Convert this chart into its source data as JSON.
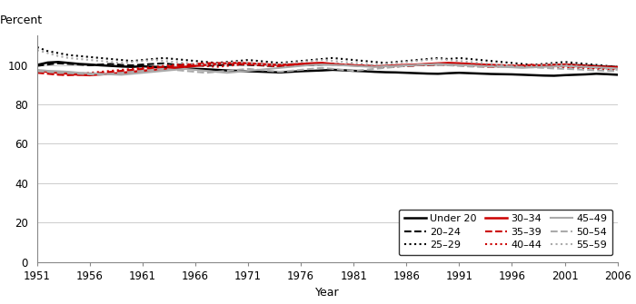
{
  "ylabel": "Percent",
  "xlabel": "Year",
  "xlim": [
    1951,
    2006
  ],
  "ylim": [
    0,
    115
  ],
  "yticks": [
    0,
    20,
    40,
    60,
    80,
    100
  ],
  "xticks": [
    1951,
    1956,
    1961,
    1966,
    1971,
    1976,
    1981,
    1986,
    1991,
    1996,
    2001,
    2006
  ],
  "background_color": "#ffffff",
  "plot_bg_color": "#ffffff",
  "series": {
    "under20": {
      "label": "Under 20",
      "color": "#000000",
      "linestyle": "solid",
      "linewidth": 1.8,
      "data": [
        100.0,
        101.2,
        101.5,
        101.0,
        100.5,
        100.2,
        99.8,
        99.5,
        99.2,
        99.0,
        99.3,
        99.0,
        98.8,
        98.5,
        98.2,
        98.0,
        97.8,
        97.5,
        97.2,
        97.0,
        96.8,
        96.6,
        96.4,
        96.2,
        96.5,
        96.8,
        97.0,
        97.2,
        97.5,
        97.3,
        97.0,
        96.8,
        96.5,
        96.3,
        96.2,
        96.0,
        95.8,
        95.6,
        95.5,
        95.8,
        96.0,
        95.8,
        95.6,
        95.4,
        95.3,
        95.2,
        95.0,
        94.8,
        94.6,
        94.5,
        94.8,
        95.0,
        95.2,
        95.5,
        95.3,
        95.0
      ]
    },
    "20_24": {
      "label": "20–24",
      "color": "#000000",
      "linestyle": "dashed",
      "linewidth": 1.5,
      "data": [
        99.5,
        100.2,
        100.8,
        100.5,
        100.2,
        99.8,
        100.2,
        100.5,
        100.0,
        99.8,
        100.2,
        100.5,
        100.8,
        100.2,
        100.0,
        99.8,
        99.5,
        99.8,
        100.0,
        100.2,
        100.0,
        99.8,
        99.5,
        99.3,
        99.5,
        99.8,
        100.0,
        100.2,
        100.5,
        100.2,
        99.8,
        99.5,
        99.3,
        99.0,
        99.2,
        99.5,
        99.8,
        100.0,
        100.2,
        100.5,
        100.2,
        100.0,
        99.8,
        99.5,
        99.3,
        99.0,
        99.2,
        99.5,
        99.8,
        100.0,
        100.2,
        100.0,
        99.8,
        99.5,
        99.3,
        99.0
      ]
    },
    "25_29": {
      "label": "25–29",
      "color": "#000000",
      "linestyle": "dotted",
      "linewidth": 1.5,
      "data": [
        109.0,
        107.0,
        106.0,
        105.0,
        104.5,
        104.0,
        103.5,
        103.0,
        102.5,
        102.0,
        102.5,
        103.0,
        103.5,
        103.0,
        102.5,
        102.0,
        101.5,
        101.0,
        101.5,
        102.0,
        102.5,
        102.0,
        101.5,
        101.0,
        101.5,
        102.0,
        102.5,
        103.0,
        103.5,
        103.0,
        102.5,
        102.0,
        101.5,
        101.0,
        101.5,
        102.0,
        102.5,
        103.0,
        103.5,
        103.0,
        103.5,
        103.0,
        102.5,
        102.0,
        101.5,
        101.0,
        100.5,
        100.0,
        100.5,
        101.0,
        101.5,
        101.0,
        100.5,
        100.0,
        99.5,
        99.0
      ]
    },
    "30_34": {
      "label": "30–34",
      "color": "#cc0000",
      "linestyle": "solid",
      "linewidth": 1.8,
      "data": [
        97.0,
        96.5,
        96.0,
        95.5,
        95.0,
        94.8,
        95.2,
        95.5,
        96.0,
        96.5,
        97.0,
        97.5,
        98.0,
        98.5,
        99.0,
        99.5,
        100.0,
        100.5,
        100.8,
        101.0,
        100.8,
        100.5,
        100.2,
        100.0,
        100.2,
        100.5,
        100.8,
        101.0,
        100.5,
        100.0,
        99.8,
        99.5,
        99.3,
        99.5,
        99.8,
        100.0,
        100.2,
        100.5,
        100.8,
        101.0,
        100.8,
        100.5,
        100.2,
        100.0,
        99.8,
        99.5,
        99.3,
        99.5,
        99.8,
        100.0,
        100.2,
        99.8,
        99.5,
        99.2,
        99.0,
        98.8
      ]
    },
    "35_39": {
      "label": "35–39",
      "color": "#cc0000",
      "linestyle": "dashed",
      "linewidth": 1.5,
      "data": [
        96.0,
        95.5,
        95.0,
        94.8,
        95.0,
        95.5,
        96.0,
        96.5,
        97.0,
        97.5,
        98.0,
        98.5,
        99.0,
        99.5,
        100.0,
        100.5,
        100.8,
        101.0,
        100.8,
        100.5,
        100.3,
        100.0,
        99.8,
        99.5,
        99.8,
        100.0,
        100.2,
        100.5,
        100.2,
        100.0,
        99.8,
        99.5,
        99.3,
        99.0,
        99.3,
        99.5,
        99.8,
        100.0,
        100.2,
        100.0,
        99.8,
        99.5,
        99.3,
        99.0,
        99.3,
        99.5,
        99.8,
        100.0,
        99.8,
        99.5,
        99.2,
        99.0,
        98.8,
        98.5,
        98.3,
        98.0
      ]
    },
    "40_44": {
      "label": "40–44",
      "color": "#cc0000",
      "linestyle": "dotted",
      "linewidth": 1.5,
      "data": [
        96.5,
        95.8,
        95.2,
        95.0,
        95.5,
        96.0,
        96.5,
        97.0,
        97.5,
        98.0,
        98.5,
        99.0,
        99.5,
        100.0,
        100.5,
        100.0,
        99.5,
        99.0,
        99.5,
        100.0,
        100.5,
        100.0,
        99.5,
        99.0,
        99.5,
        100.0,
        100.5,
        100.8,
        100.5,
        100.2,
        99.8,
        99.5,
        99.3,
        99.0,
        99.2,
        99.5,
        99.8,
        100.0,
        100.2,
        100.0,
        99.8,
        99.5,
        99.3,
        99.0,
        99.3,
        99.5,
        99.8,
        99.5,
        99.2,
        99.0,
        98.8,
        98.5,
        98.3,
        98.0,
        97.8,
        97.5
      ]
    },
    "45_49": {
      "label": "45–49",
      "color": "#aaaaaa",
      "linestyle": "solid",
      "linewidth": 1.5,
      "data": [
        97.5,
        97.0,
        96.8,
        96.5,
        96.0,
        95.8,
        95.5,
        95.2,
        95.0,
        95.5,
        96.0,
        96.5,
        97.0,
        97.5,
        98.0,
        97.5,
        97.0,
        96.5,
        96.0,
        96.5,
        97.0,
        97.5,
        98.0,
        98.5,
        99.0,
        99.5,
        100.0,
        100.2,
        100.0,
        99.8,
        99.5,
        99.2,
        99.0,
        99.3,
        99.5,
        99.8,
        100.0,
        100.2,
        100.5,
        100.2,
        100.0,
        99.8,
        99.5,
        99.2,
        99.0,
        98.8,
        98.5,
        98.8,
        99.0,
        99.2,
        99.5,
        99.2,
        99.0,
        98.8,
        98.5,
        98.2
      ]
    },
    "50_54": {
      "label": "50–54",
      "color": "#aaaaaa",
      "linestyle": "dashed",
      "linewidth": 1.5,
      "data": [
        96.8,
        96.5,
        96.0,
        95.8,
        95.5,
        95.2,
        95.0,
        95.5,
        96.0,
        96.5,
        97.0,
        97.5,
        98.0,
        97.5,
        97.0,
        96.5,
        96.0,
        96.5,
        97.0,
        97.5,
        98.0,
        97.5,
        97.0,
        96.5,
        97.0,
        97.5,
        98.0,
        98.5,
        98.0,
        97.5,
        97.0,
        97.5,
        98.0,
        98.5,
        99.0,
        99.5,
        100.0,
        100.2,
        100.0,
        99.8,
        99.5,
        99.2,
        99.0,
        99.2,
        99.5,
        99.2,
        99.0,
        98.8,
        98.5,
        98.2,
        98.0,
        97.8,
        97.5,
        97.2,
        97.0,
        96.8
      ]
    },
    "55_59": {
      "label": "55–59",
      "color": "#aaaaaa",
      "linestyle": "dotted",
      "linewidth": 1.5,
      "data": [
        107.5,
        106.0,
        104.5,
        103.5,
        103.0,
        102.5,
        102.0,
        101.5,
        101.0,
        101.5,
        102.0,
        102.5,
        102.0,
        101.5,
        101.0,
        100.5,
        100.0,
        100.5,
        101.0,
        101.5,
        101.0,
        100.5,
        100.0,
        100.5,
        101.0,
        101.5,
        102.0,
        102.5,
        102.0,
        101.5,
        101.0,
        100.5,
        100.0,
        100.5,
        101.0,
        101.5,
        102.0,
        102.5,
        103.0,
        102.5,
        102.0,
        101.5,
        101.0,
        100.5,
        100.0,
        99.5,
        99.0,
        99.5,
        100.0,
        100.5,
        100.0,
        99.5,
        99.0,
        98.5,
        98.0,
        97.5
      ]
    }
  },
  "legend_order": [
    [
      "under20",
      "20_24",
      "25_29"
    ],
    [
      "30_34",
      "35_39",
      "40_44"
    ],
    [
      "45_49",
      "50_54",
      "55_59"
    ]
  ]
}
